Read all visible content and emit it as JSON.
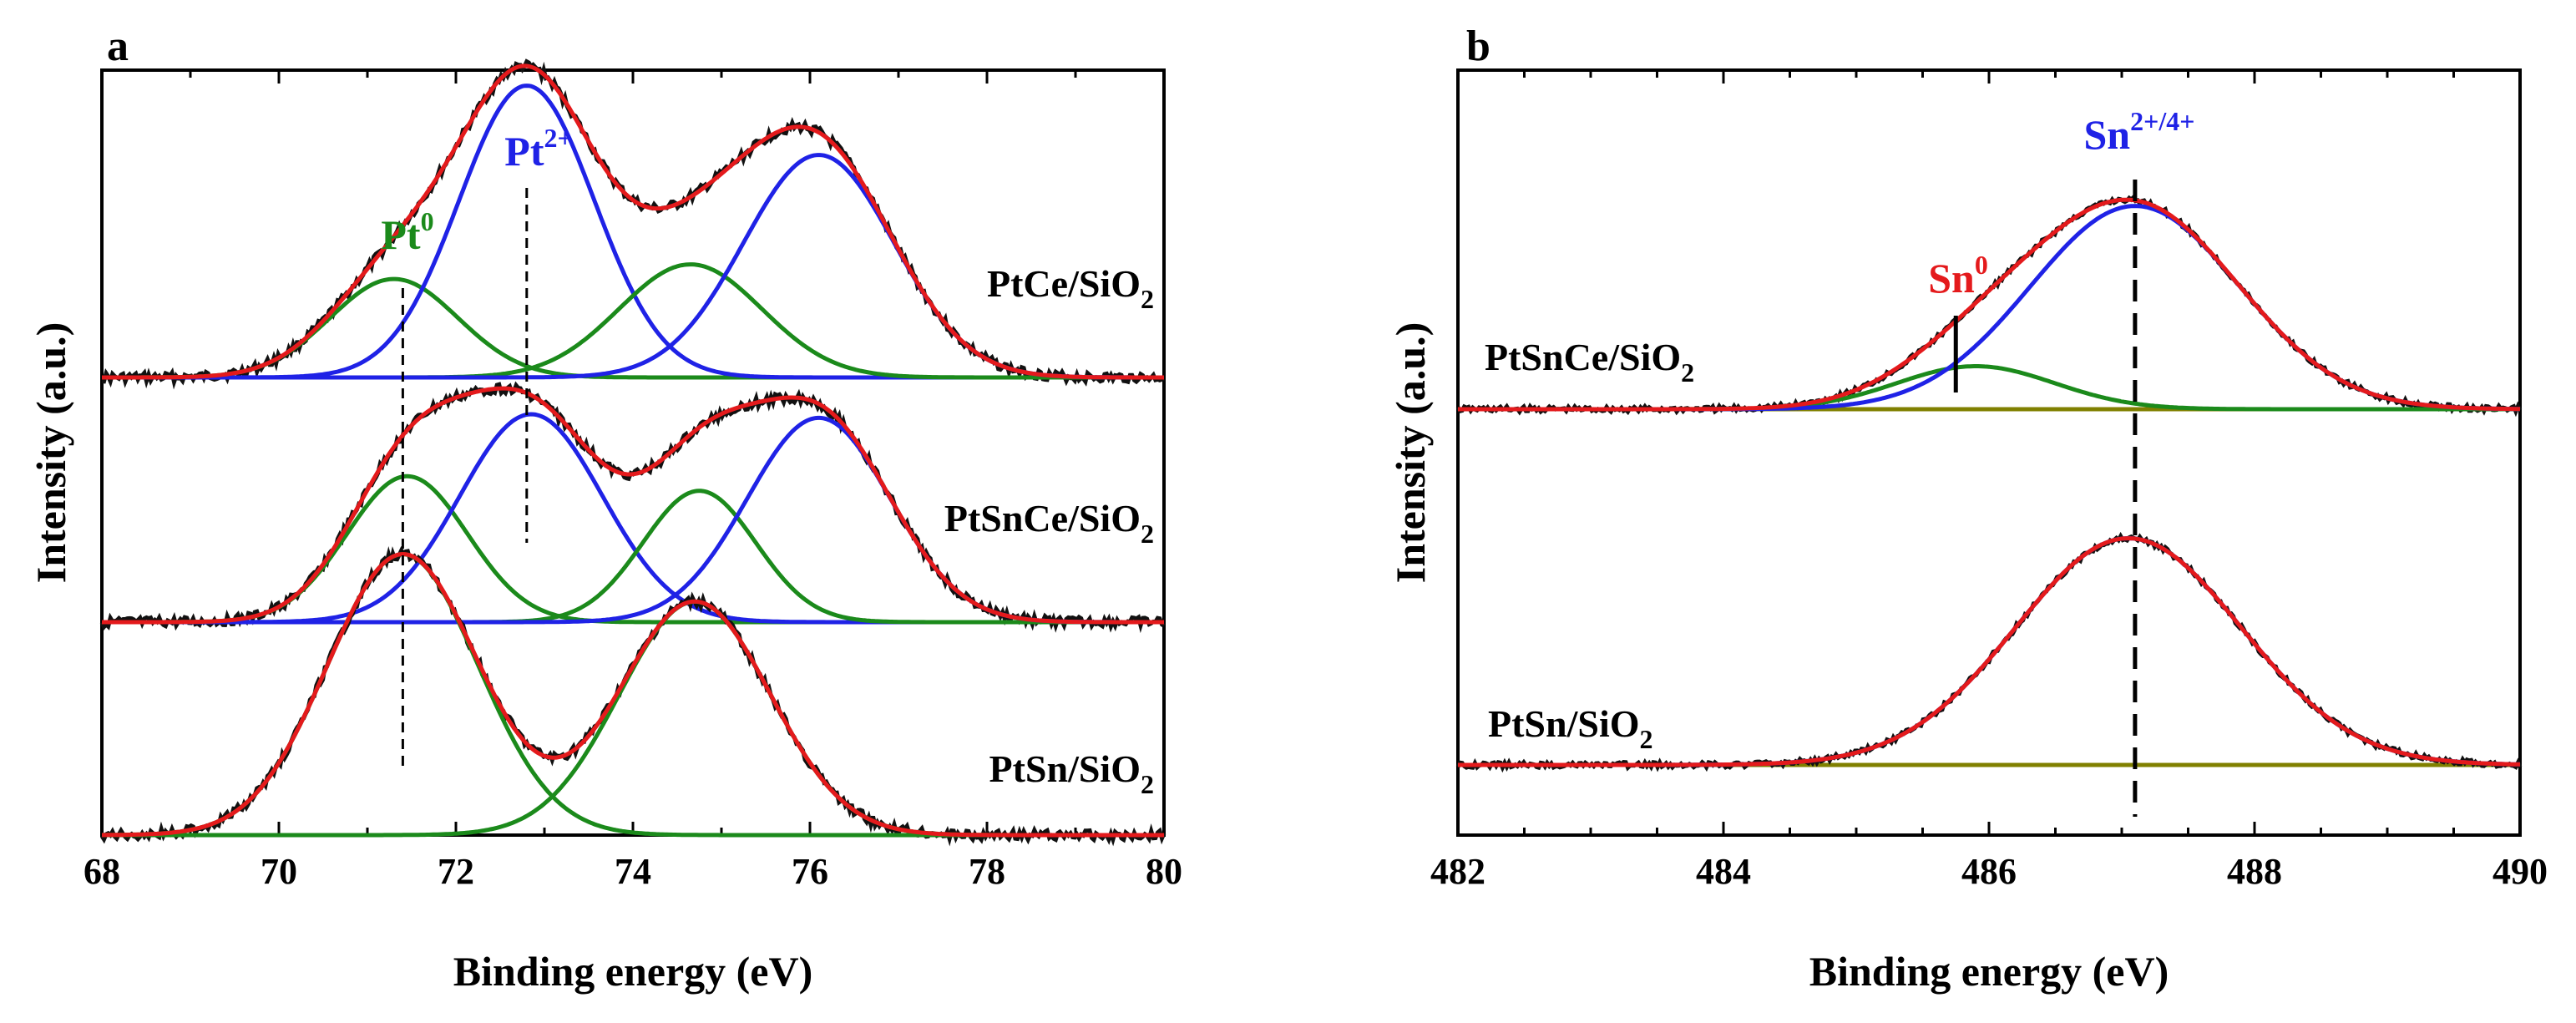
{
  "chart_data": [
    {
      "panel": "a",
      "type": "line",
      "title": "",
      "xlabel": "Binding energy (eV)",
      "ylabel": "Intensity (a.u.)",
      "xlim": [
        68,
        80
      ],
      "xticks": [
        68,
        70,
        72,
        74,
        76,
        78,
        80
      ],
      "yticks": [],
      "grid": false,
      "legend": "none",
      "colors": {
        "data": "#111111",
        "envelope": "#e41a1c",
        "pt0": "#1b8a1b",
        "pt2": "#1f22e6"
      },
      "traces": [
        {
          "label": "PtCe/SiO",
          "subscript": "2",
          "offset": 8.6,
          "peaks": [
            {
              "state": "Pt0",
              "center": 71.3,
              "height": 1.35,
              "fwhm": 1.7
            },
            {
              "state": "Pt2+",
              "center": 72.8,
              "height": 4.0,
              "fwhm": 1.8
            },
            {
              "state": "Pt0",
              "center": 74.65,
              "height": 1.55,
              "fwhm": 1.9
            },
            {
              "state": "Pt2+",
              "center": 76.1,
              "height": 3.05,
              "fwhm": 2.0
            }
          ]
        },
        {
          "label": "PtSnCe/SiO",
          "subscript": "2",
          "offset": 4.2,
          "peaks": [
            {
              "state": "Pt0",
              "center": 71.45,
              "height": 2.0,
              "fwhm": 1.6
            },
            {
              "state": "Pt2+",
              "center": 72.85,
              "height": 2.85,
              "fwhm": 1.9
            },
            {
              "state": "Pt0",
              "center": 74.75,
              "height": 1.8,
              "fwhm": 1.5
            },
            {
              "state": "Pt2+",
              "center": 76.1,
              "height": 2.8,
              "fwhm": 1.9
            }
          ]
        },
        {
          "label": "PtSn/SiO",
          "subscript": "2",
          "offset": 0.0,
          "peaks": [
            {
              "state": "Pt0",
              "center": 71.4,
              "height": 3.85,
              "fwhm": 2.0
            },
            {
              "state": "Pt0",
              "center": 74.7,
              "height": 3.2,
              "fwhm": 2.0
            }
          ]
        }
      ],
      "annotations": [
        {
          "text": "Pt",
          "sup": "0",
          "color": "#1b8a1b",
          "x": 71.4
        },
        {
          "text": "Pt",
          "sup": "2+",
          "color": "#1f22e6",
          "x": 72.8
        }
      ],
      "reference_lines": [
        71.4,
        72.8
      ]
    },
    {
      "panel": "b",
      "type": "line",
      "title": "",
      "xlabel": "Binding energy (eV)",
      "ylabel": "Intensity (a.u.)",
      "xlim": [
        482,
        490
      ],
      "xticks": [
        482,
        484,
        486,
        488,
        490
      ],
      "yticks": [],
      "grid": false,
      "legend": "none",
      "colors": {
        "data": "#111111",
        "envelope": "#e41a1c",
        "sn0": "#1b8a1b",
        "sn24": "#1f22e6",
        "baseline": "#808000"
      },
      "traces": [
        {
          "label": "PtSnCe/SiO",
          "subscript": "2",
          "offset": 6.5,
          "peaks": [
            {
              "state": "Sn0",
              "center": 485.9,
              "height": 0.55,
              "fwhm": 1.4
            },
            {
              "state": "Sn2+/4+",
              "center": 487.1,
              "height": 2.6,
              "fwhm": 1.85
            }
          ]
        },
        {
          "label": "PtSn/SiO",
          "subscript": "2",
          "offset": 0.0,
          "peaks": [
            {
              "state": "Sn2+/4+",
              "center": 487.05,
              "height": 2.9,
              "fwhm": 2.0
            }
          ]
        }
      ],
      "annotations": [
        {
          "text": "Sn",
          "sup": "0",
          "color": "#e41a1c",
          "x": 485.75
        },
        {
          "text": "Sn",
          "sup": "2+/4+",
          "color": "#1f22e6",
          "x": 487.1
        }
      ],
      "reference_lines": [
        487.1
      ]
    }
  ]
}
